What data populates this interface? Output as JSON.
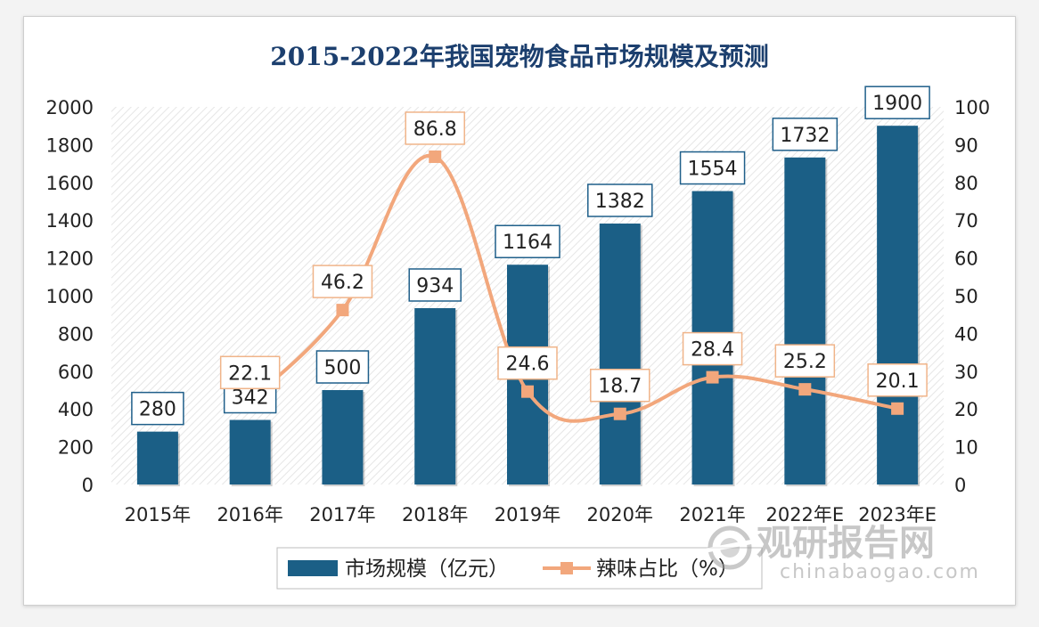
{
  "chart_data": {
    "type": "bar",
    "title": "2015-2022年我国宠物食品市场规模及预测",
    "categories": [
      "2015年",
      "2016年",
      "2017年",
      "2018年",
      "2019年",
      "2020年",
      "2021年",
      "2022年E",
      "2023年E"
    ],
    "series": [
      {
        "name": "市场规模（亿元）",
        "type": "bar",
        "axis": "left",
        "values": [
          280,
          342,
          500,
          934,
          1164,
          1382,
          1554,
          1732,
          1900
        ],
        "labels": [
          "280",
          "342",
          "500",
          "934",
          "1164",
          "1382",
          "1554",
          "1732",
          "1900"
        ]
      },
      {
        "name": "辣味占比（%）",
        "type": "line",
        "axis": "right",
        "values": [
          null,
          22.1,
          46.2,
          86.8,
          24.6,
          18.7,
          28.4,
          25.2,
          20.1
        ],
        "labels": [
          "",
          "22.1",
          "46.2",
          "86.8",
          "24.6",
          "18.7",
          "28.4",
          "25.2",
          "20.1"
        ]
      }
    ],
    "y_left": {
      "range": [
        0,
        2000
      ],
      "ticks": [
        "0",
        "200",
        "400",
        "600",
        "800",
        "1000",
        "1200",
        "1400",
        "1600",
        "1800",
        "2000"
      ]
    },
    "y_right": {
      "range": [
        0,
        100
      ],
      "ticks": [
        "0",
        "10",
        "20",
        "30",
        "40",
        "50",
        "60",
        "70",
        "80",
        "90",
        "100"
      ]
    },
    "legend": "bottom",
    "grid": false,
    "colors": {
      "bar": "#1b5f86",
      "line": "#f2a77c",
      "title": "#1c3f6e",
      "label_border": "#1f5f8a",
      "line_label_border": "#f0b489"
    }
  },
  "watermark": {
    "brand": "观研报告网",
    "domain": "chinabaogao.com"
  }
}
